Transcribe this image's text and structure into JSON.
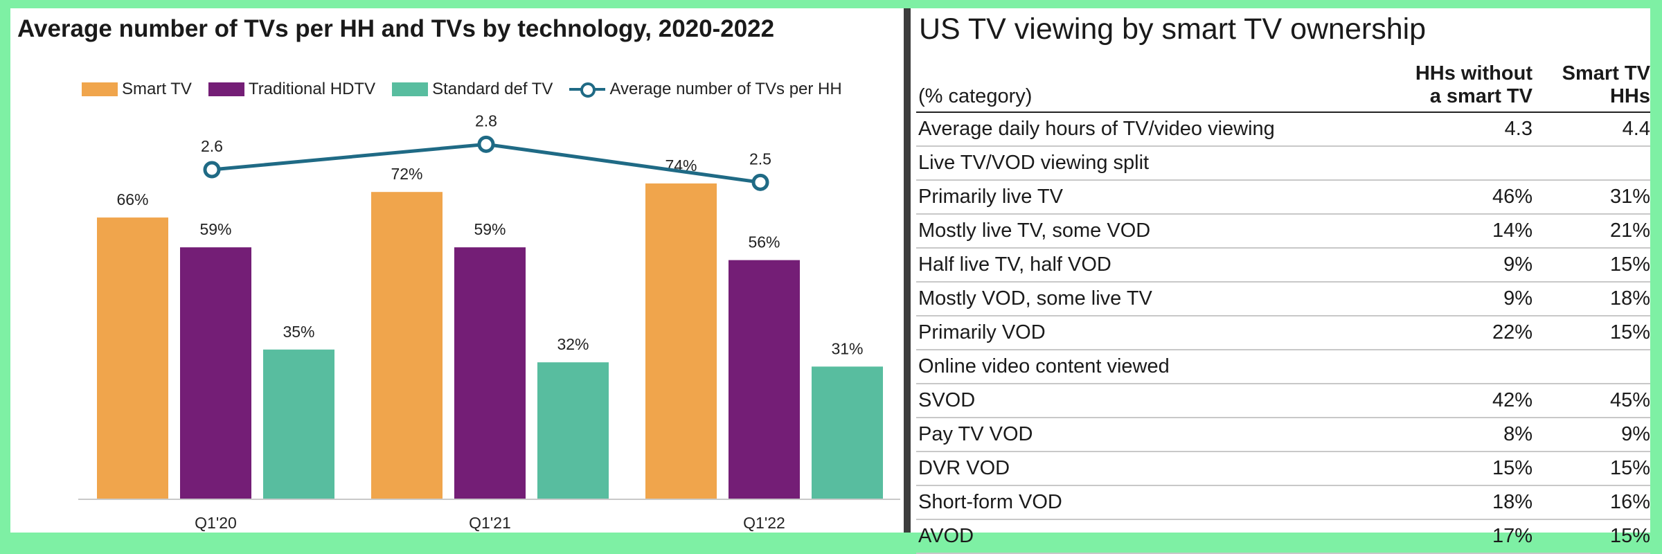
{
  "left_chart": {
    "title": "Average number of TVs per HH and TVs by technology, 2020-2022",
    "legend": [
      {
        "label": "Smart TV",
        "color": "#f0a54c",
        "kind": "bar"
      },
      {
        "label": "Traditional HDTV",
        "color": "#741e76",
        "kind": "bar"
      },
      {
        "label": "Standard def TV",
        "color": "#58bd9f",
        "kind": "bar"
      },
      {
        "label": "Average number of TVs per HH",
        "color": "#1f6a85",
        "kind": "line"
      }
    ]
  },
  "chart_data": {
    "type": "bar",
    "title": "Average number of TVs per HH and TVs by technology, 2020-2022",
    "categories": [
      "Q1'20",
      "Q1'21",
      "Q1'22"
    ],
    "series": [
      {
        "name": "Smart TV",
        "type": "bar",
        "color": "#f0a54c",
        "values": [
          66,
          72,
          74
        ],
        "labels": [
          "66%",
          "72%",
          "74%"
        ]
      },
      {
        "name": "Traditional HDTV",
        "type": "bar",
        "color": "#741e76",
        "values": [
          59,
          59,
          56
        ],
        "labels": [
          "59%",
          "59%",
          "56%"
        ]
      },
      {
        "name": "Standard def TV",
        "type": "bar",
        "color": "#58bd9f",
        "values": [
          35,
          32,
          31
        ],
        "labels": [
          "35%",
          "32%",
          "31%"
        ]
      },
      {
        "name": "Average number of TVs per HH",
        "type": "line",
        "color": "#1f6a85",
        "values": [
          2.6,
          2.8,
          2.5
        ],
        "labels": [
          "2.6",
          "2.8",
          "2.5"
        ]
      }
    ],
    "xlabel": "",
    "ylabel": "",
    "ylim": [
      0,
      100
    ],
    "grid": false,
    "legend_position": "top"
  },
  "table": {
    "title": "US TV viewing by smart TV ownership",
    "columns": [
      "(% category)",
      "HHs without a smart TV",
      "Smart TV HHs"
    ],
    "header_lines": [
      [
        "(% category)"
      ],
      [
        "HHs without",
        "a smart TV"
      ],
      [
        "Smart TV",
        "HHs"
      ]
    ],
    "rows": [
      {
        "label": "Average daily hours of TV/video viewing",
        "without": "4.3",
        "smart": "4.4"
      },
      {
        "label": "Live TV/VOD viewing split",
        "without": "",
        "smart": ""
      },
      {
        "label": "Primarily live TV",
        "without": "46%",
        "smart": "31%"
      },
      {
        "label": "Mostly live TV, some VOD",
        "without": "14%",
        "smart": "21%"
      },
      {
        "label": "Half live TV, half VOD",
        "without": "9%",
        "smart": "15%"
      },
      {
        "label": "Mostly VOD, some live TV",
        "without": "9%",
        "smart": "18%"
      },
      {
        "label": "Primarily VOD",
        "without": "22%",
        "smart": "15%"
      },
      {
        "label": "Online video content viewed",
        "without": "",
        "smart": ""
      },
      {
        "label": "SVOD",
        "without": "42%",
        "smart": "45%"
      },
      {
        "label": "Pay TV VOD",
        "without": "8%",
        "smart": "9%"
      },
      {
        "label": "DVR VOD",
        "without": "15%",
        "smart": "15%"
      },
      {
        "label": "Short-form VOD",
        "without": "18%",
        "smart": "16%"
      },
      {
        "label": "AVOD",
        "without": "17%",
        "smart": "15%"
      }
    ]
  }
}
